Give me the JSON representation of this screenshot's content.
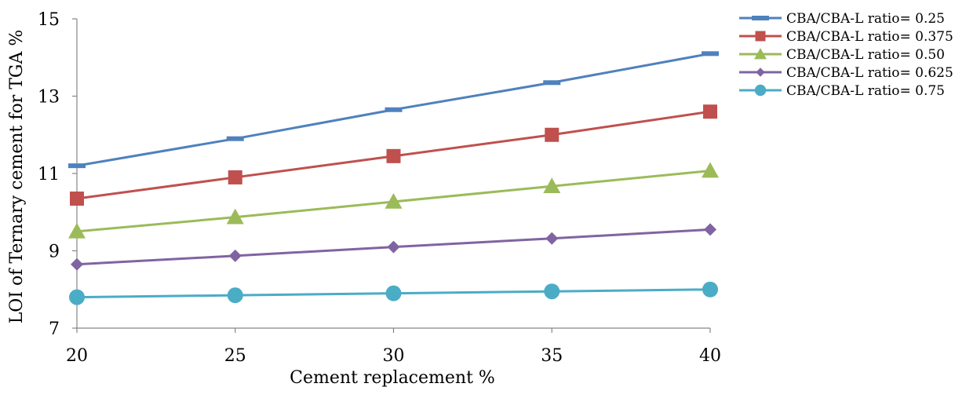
{
  "chart_data": {
    "type": "line",
    "title": "",
    "xlabel": "Cement replacement %",
    "ylabel": "LOI of Ternary cement for TGA %",
    "x": [
      20,
      25,
      30,
      35,
      40
    ],
    "categories": [
      "20",
      "25",
      "30",
      "35",
      "40"
    ],
    "ylim": [
      7,
      15
    ],
    "yticks": [
      "7",
      "9",
      "11",
      "13",
      "15"
    ],
    "grid": false,
    "legend_position": "right",
    "series": [
      {
        "name": "CBA/CBA-L ratio= 0.25",
        "values": [
          11.2,
          11.9,
          12.65,
          13.35,
          14.1
        ],
        "color": "#4F81BD",
        "marker": "dash"
      },
      {
        "name": "CBA/CBA-L ratio= 0.375",
        "values": [
          10.35,
          10.9,
          11.45,
          12.0,
          12.6
        ],
        "color": "#C0504D",
        "marker": "square"
      },
      {
        "name": "CBA/CBA-L ratio= 0.50",
        "values": [
          9.5,
          9.87,
          10.27,
          10.67,
          11.07
        ],
        "color": "#9BBB59",
        "marker": "triangle"
      },
      {
        "name": "CBA/CBA-L ratio= 0.625",
        "values": [
          8.65,
          8.87,
          9.1,
          9.32,
          9.55
        ],
        "color": "#8064A2",
        "marker": "diamond"
      },
      {
        "name": "CBA/CBA-L ratio= 0.75",
        "values": [
          7.8,
          7.85,
          7.9,
          7.95,
          8.0
        ],
        "color": "#4BACC6",
        "marker": "circle"
      }
    ]
  }
}
